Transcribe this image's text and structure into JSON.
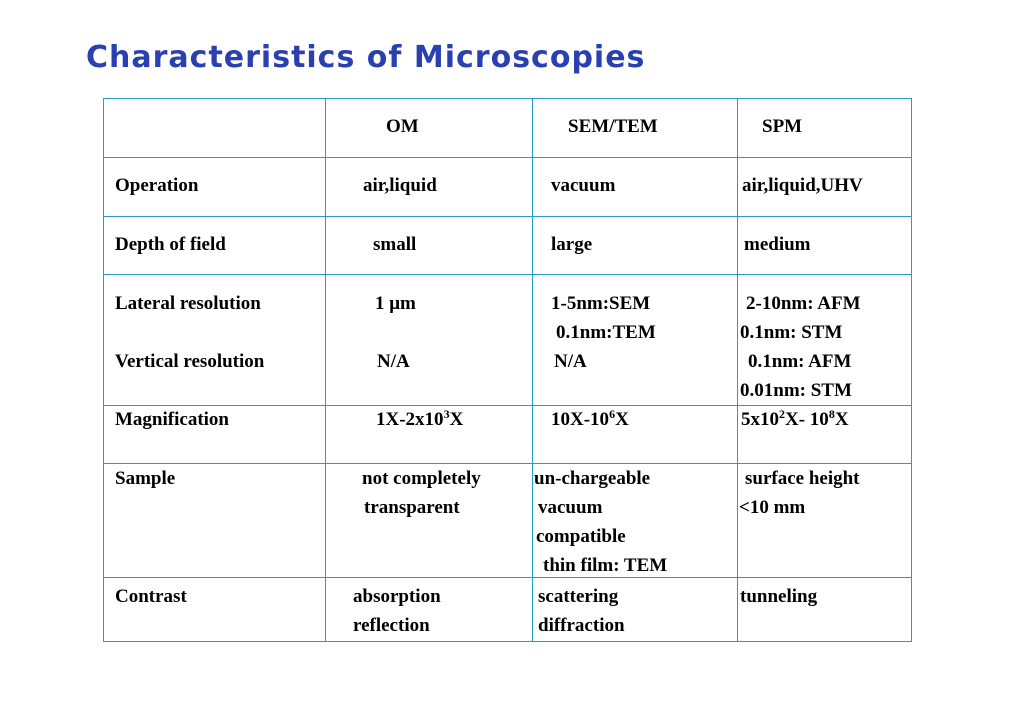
{
  "title": "Characteristics of Microscopies",
  "header": [
    "OM",
    "SEM/TEM",
    "SPM"
  ],
  "rows": [
    {
      "label": "Operation",
      "om": [
        "air,liquid"
      ],
      "sem": [
        "vacuum"
      ],
      "spm": [
        "air,liquid,UHV"
      ]
    },
    {
      "label": "Depth of field",
      "om": [
        "small"
      ],
      "sem": [
        "large"
      ],
      "spm": [
        "medium"
      ]
    },
    {
      "label": "Lateral resolution",
      "om": [
        "1 μm"
      ],
      "sem": [
        "1-5nm:SEM",
        "0.1nm:TEM"
      ],
      "spm": [
        "2-10nm: AFM",
        "0.1nm: STM"
      ]
    },
    {
      "label": "Vertical resolution",
      "om": [
        "N/A"
      ],
      "sem": [
        "N/A"
      ],
      "spm": [
        "0.1nm: AFM",
        "0.01nm: STM"
      ]
    },
    {
      "label": "Magnification",
      "om_parts": [
        "1X-2x10",
        "3",
        "X"
      ],
      "sem_parts": [
        "10X-10",
        "6",
        "X"
      ],
      "spm_parts": [
        "5x10",
        "2",
        "X- 10",
        "8",
        "X"
      ]
    },
    {
      "label": "Sample",
      "om": [
        "not completely",
        "transparent"
      ],
      "sem": [
        "un-chargeable",
        "vacuum",
        "compatible",
        "thin film: TEM"
      ],
      "spm": [
        "surface height",
        "<10 mm"
      ]
    },
    {
      "label": "Contrast",
      "om": [
        "absorption",
        "reflection"
      ],
      "sem": [
        "scattering",
        "diffraction"
      ],
      "spm": [
        "tunneling"
      ]
    }
  ]
}
